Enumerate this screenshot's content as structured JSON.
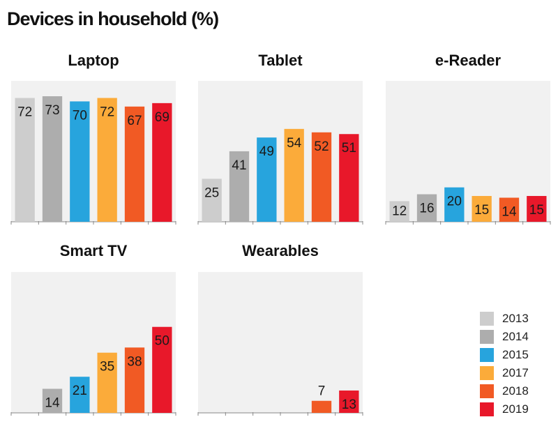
{
  "title": "Devices in household (%)",
  "legend": [
    {
      "label": "2013",
      "color": "#cdcdcd"
    },
    {
      "label": "2014",
      "color": "#adadad"
    },
    {
      "label": "2015",
      "color": "#27a4dd"
    },
    {
      "label": "2017",
      "color": "#fbab3a"
    },
    {
      "label": "2018",
      "color": "#f15a24"
    },
    {
      "label": "2019",
      "color": "#e8182a"
    }
  ],
  "chart_data": [
    {
      "type": "bar",
      "title": "Laptop",
      "categories": [
        "2013",
        "2014",
        "2015",
        "2017",
        "2018",
        "2019"
      ],
      "values": [
        72,
        73,
        70,
        72,
        67,
        69
      ],
      "ylim": [
        0,
        81
      ]
    },
    {
      "type": "bar",
      "title": "Tablet",
      "categories": [
        "2013",
        "2014",
        "2015",
        "2017",
        "2018",
        "2019"
      ],
      "values": [
        25,
        41,
        49,
        54,
        52,
        51
      ],
      "ylim": [
        0,
        81
      ]
    },
    {
      "type": "bar",
      "title": "e-Reader",
      "categories": [
        "2013",
        "2014",
        "2015",
        "2017",
        "2018",
        "2019"
      ],
      "values": [
        12,
        16,
        20,
        15,
        14,
        15
      ],
      "ylim": [
        0,
        81
      ]
    },
    {
      "type": "bar",
      "title": "Smart TV",
      "categories": [
        "2013",
        "2014",
        "2015",
        "2017",
        "2018",
        "2019"
      ],
      "values": [
        null,
        14,
        21,
        35,
        38,
        50
      ],
      "ylim": [
        0,
        81
      ]
    },
    {
      "type": "bar",
      "title": "Wearables",
      "categories": [
        "2013",
        "2014",
        "2015",
        "2017",
        "2018",
        "2019"
      ],
      "values": [
        null,
        null,
        null,
        null,
        7,
        13
      ],
      "ylim": [
        0,
        81
      ]
    }
  ]
}
